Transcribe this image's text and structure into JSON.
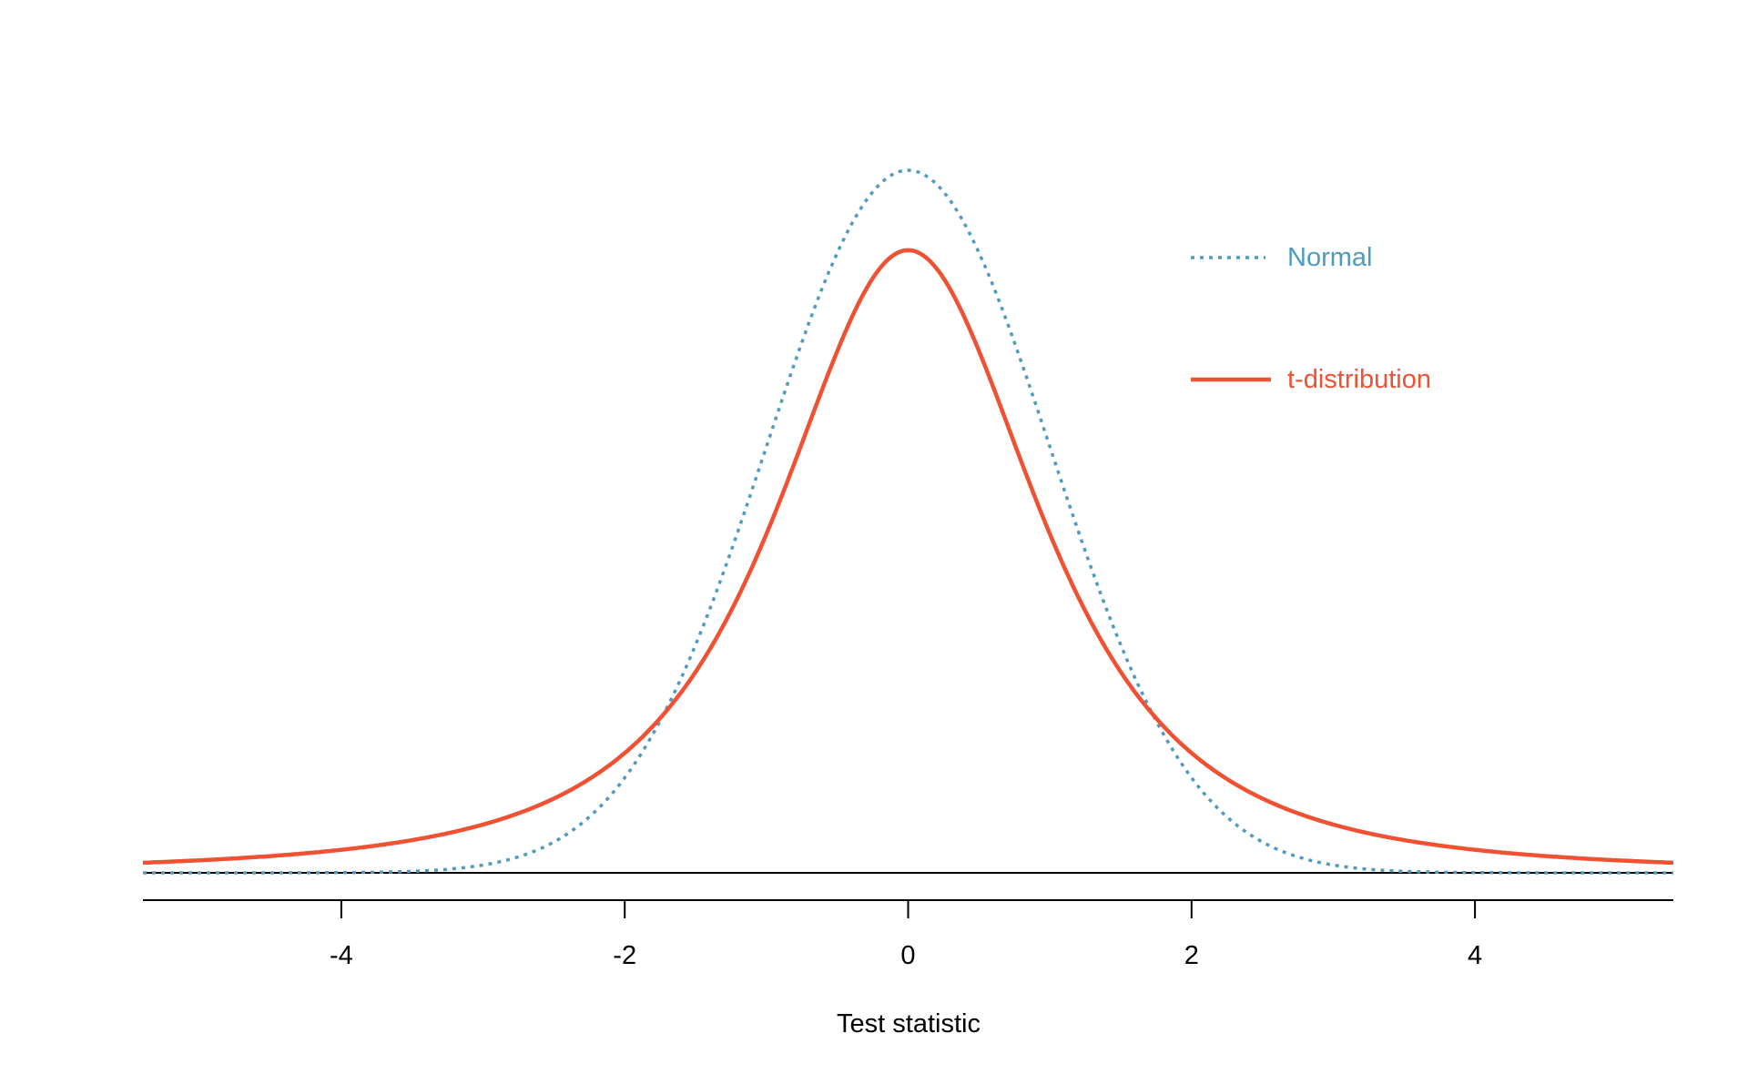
{
  "chart_data": {
    "type": "line",
    "title": "",
    "xlabel": "Test statistic",
    "ylabel": "",
    "xlim": [
      -5.4,
      5.4
    ],
    "ylim": [
      0,
      0.4
    ],
    "x_ticks": [
      -4,
      -2,
      0,
      2,
      4
    ],
    "x_tick_labels": [
      "-4",
      "-2",
      "0",
      "2",
      "4"
    ],
    "grid": false,
    "legend_placement": "top-right",
    "series": [
      {
        "name": "Normal",
        "distribution": "standard normal",
        "style": "dotted",
        "color": "#4f9bc0",
        "peak_density": 0.399
      },
      {
        "name": "t-distribution",
        "distribution": "t, df = 2",
        "style": "solid",
        "color": "#f05133",
        "peak_density": 0.354
      }
    ]
  }
}
